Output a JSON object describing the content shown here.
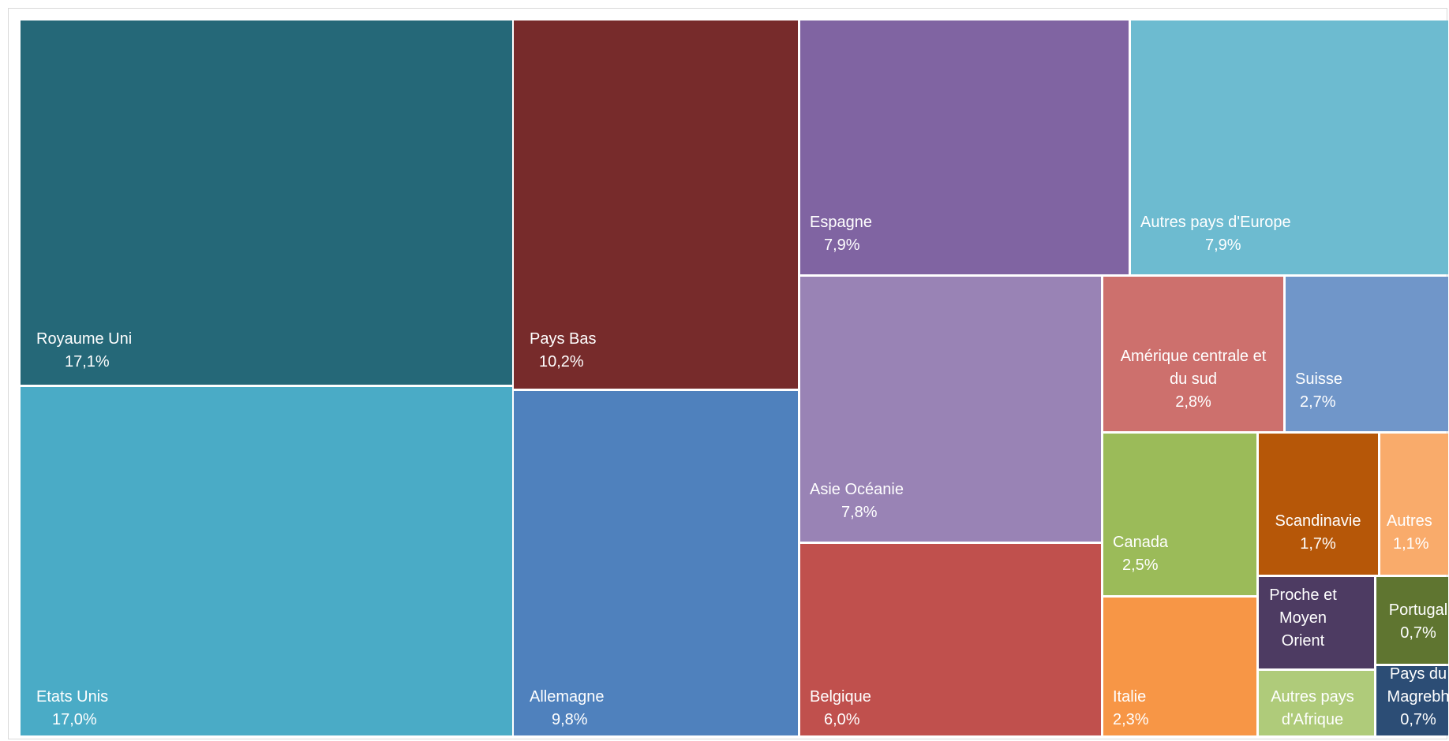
{
  "chart_data": {
    "type": "treemap",
    "title": "",
    "items": [
      {
        "label": "Royaume Uni",
        "value": "17,1%",
        "color": "#256878"
      },
      {
        "label": "Etats Unis",
        "value": "17,0%",
        "color": "#4aabc6"
      },
      {
        "label": "Pays Bas",
        "value": "10,2%",
        "color": "#772b2b"
      },
      {
        "label": "Allemagne",
        "value": "9,8%",
        "color": "#4f81bd"
      },
      {
        "label": "Espagne",
        "value": "7,9%",
        "color": "#8064a2"
      },
      {
        "label": "Autres pays d'Europe",
        "value": "7,9%",
        "color": "#6dbbd0"
      },
      {
        "label": "Asie Océanie",
        "value": "7,8%",
        "color": "#9983b5"
      },
      {
        "label": "Belgique",
        "value": "6,0%",
        "color": "#c0504d"
      },
      {
        "label": "Amérique centrale et du sud",
        "value": "2,8%",
        "color": "#cd706d"
      },
      {
        "label": "Suisse",
        "value": "2,7%",
        "color": "#7096c9"
      },
      {
        "label": "Canada",
        "value": "2,5%",
        "color": "#9bbb59"
      },
      {
        "label": "Italie",
        "value": "2,3%",
        "color": "#f79646"
      },
      {
        "label": "Scandinavie",
        "value": "1,7%",
        "color": "#b65708"
      },
      {
        "label": "Autres",
        "value": "1,1%",
        "color": "#f9ab6b"
      },
      {
        "label": "Proche et Moyen Orient",
        "value": "",
        "color": "#4d3b62"
      },
      {
        "label": "Autres pays d'Afrique",
        "value": "",
        "color": "#afcb7a"
      },
      {
        "label": "Portugal",
        "value": "0,7%",
        "color": "#5f7530"
      },
      {
        "label": "Pays du Magrebh",
        "value": "0,7%",
        "color": "#2c4d75"
      }
    ]
  }
}
